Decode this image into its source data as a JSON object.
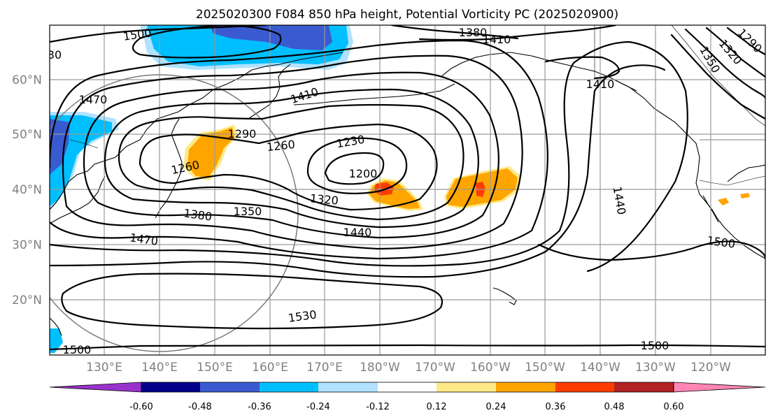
{
  "title": "2025020300 F084 850 hPa height, Potential Vorticity PC (2025020900)",
  "lat_ticks": [
    "60°N",
    "50°N",
    "40°N",
    "30°N",
    "20°N"
  ],
  "lon_ticks": [
    "130°E",
    "140°E",
    "150°E",
    "160°E",
    "170°E",
    "180°W",
    "170°W",
    "160°W",
    "150°W",
    "140°W",
    "130°W",
    "120°W"
  ],
  "contour_labels": [
    "1500",
    "1380",
    "1410",
    "1350",
    "1320",
    "1290",
    "30",
    "1470",
    "1410",
    "1410",
    "1290",
    "1260",
    "1230",
    "1200",
    "1260",
    "1320",
    "1350",
    "1380",
    "1440",
    "1470",
    "1440",
    "1500",
    "1530",
    "1500",
    "1500"
  ],
  "colorbar": {
    "ticks": [
      "-0.60",
      "-0.48",
      "-0.36",
      "-0.24",
      "-0.12",
      "0.12",
      "0.24",
      "0.36",
      "0.48",
      "0.60"
    ],
    "colors": [
      "#9932cc",
      "#00008b",
      "#3a5bd0",
      "#00bfff",
      "#b0e2ff",
      "#ffffff",
      "#ffe986",
      "#ffa500",
      "#ff3c00",
      "#b22222",
      "#ff85b4"
    ]
  },
  "shading_colors": {
    "pv_negative_light": "#b0e2ff",
    "pv_negative_mid": "#00bfff",
    "pv_negative_strong": "#3a5bd0",
    "pv_positive_light": "#ffe986",
    "pv_positive_mid": "#ffa500",
    "pv_positive_strong": "#ff3c00"
  }
}
